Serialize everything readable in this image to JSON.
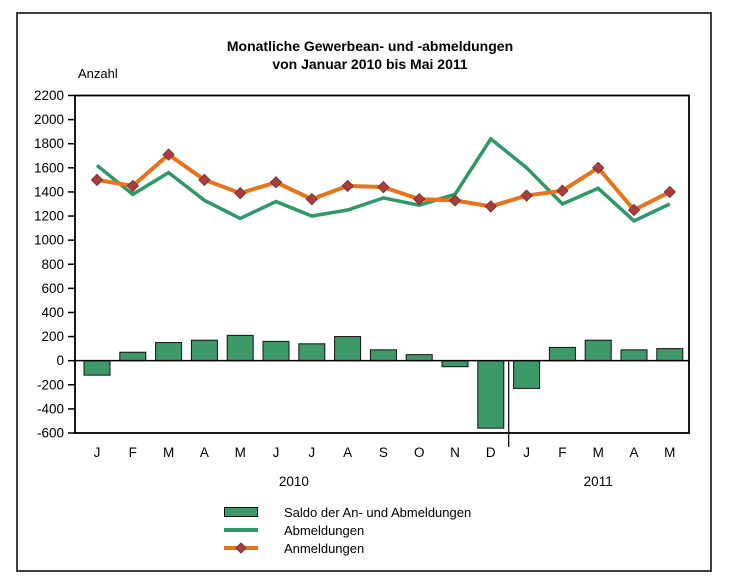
{
  "window": {
    "background": "#ffffff",
    "frame_border_color": "#3d3d3d"
  },
  "chart_data": {
    "type": "bar+line combo",
    "title": "Monatliche Gewerbean- und -abmeldungen",
    "subtitle": "von Januar 2010 bis Mai 2011",
    "y_axis_label": "Anzahl",
    "categories": [
      "J",
      "F",
      "M",
      "A",
      "M",
      "J",
      "J",
      "A",
      "S",
      "O",
      "N",
      "D",
      "J",
      "F",
      "M",
      "A",
      "M"
    ],
    "year_groups": [
      {
        "label": "2010",
        "start": 0,
        "end": 11
      },
      {
        "label": "2011",
        "start": 12,
        "end": 16
      }
    ],
    "ylim": [
      -600,
      2200
    ],
    "ytick_step": 200,
    "grid": false,
    "legend_position": "bottom",
    "series": [
      {
        "name": "Saldo der An- und Abmeldungen",
        "type": "bar",
        "color": "#3d9a68",
        "border_color": "#111111",
        "values": [
          -120,
          70,
          150,
          170,
          210,
          160,
          140,
          200,
          90,
          50,
          -50,
          -560,
          -230,
          110,
          170,
          90,
          100
        ]
      },
      {
        "name": "Abmeldungen",
        "type": "line",
        "color": "#2e9966",
        "values": [
          1620,
          1380,
          1560,
          1330,
          1180,
          1320,
          1200,
          1250,
          1350,
          1290,
          1380,
          1840,
          1600,
          1300,
          1430,
          1160,
          1300
        ]
      },
      {
        "name": "Anmeldungen",
        "type": "line",
        "color": "#e8731a",
        "marker": "diamond",
        "marker_color": "#a93e3e",
        "marker_border_color": "#8a2e2e",
        "values": [
          1500,
          1450,
          1710,
          1500,
          1390,
          1480,
          1340,
          1450,
          1440,
          1340,
          1330,
          1280,
          1370,
          1410,
          1600,
          1250,
          1400
        ]
      }
    ]
  }
}
